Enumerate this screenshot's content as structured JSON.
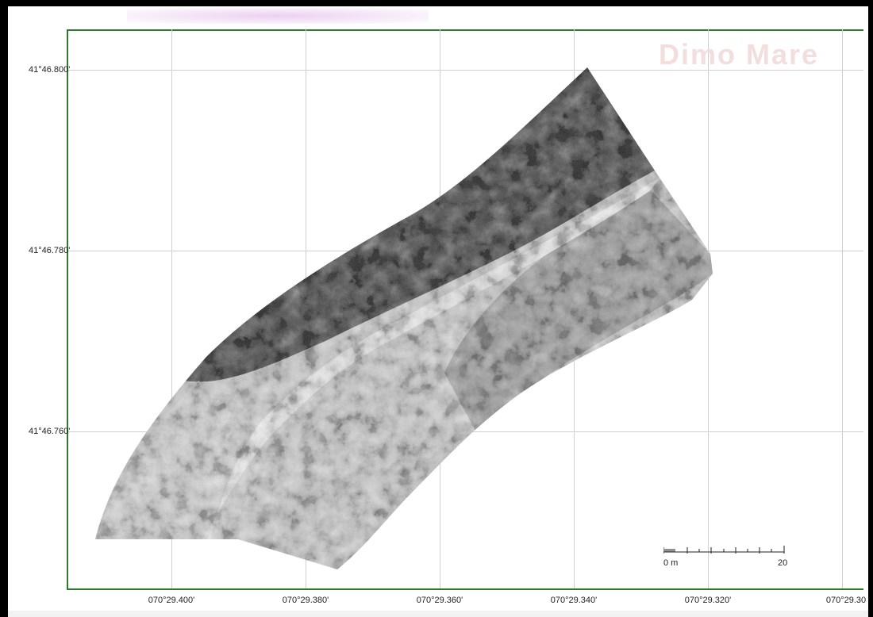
{
  "map": {
    "watermark": "Dimo Mare",
    "latitude_labels": [
      "41°46.800'",
      "41°46.780'",
      "41°46.760'"
    ],
    "longitude_labels": [
      "070°29.400'",
      "070°29.380'",
      "070°29.360'",
      "070°29.340'",
      "070°29.320'",
      "070°29.30"
    ],
    "scale": {
      "start_label": "0 m",
      "end_label": "20"
    },
    "colors": {
      "frame": "#2d7a2d",
      "grid": "#cfcfcf",
      "mosaic_dark": "#1a1a1a",
      "mosaic_light": "#e6e6e6"
    }
  }
}
